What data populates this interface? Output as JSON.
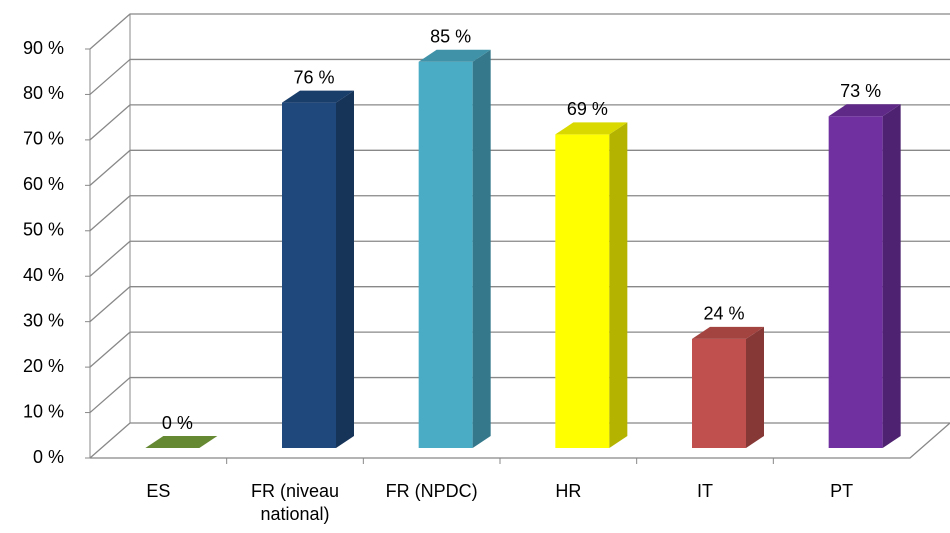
{
  "chart_data": {
    "type": "bar3d",
    "categories": [
      "ES",
      "FR (niveau national)",
      "FR (NPDC)",
      "HR",
      "IT",
      "PT"
    ],
    "values": [
      0,
      76,
      85,
      69,
      24,
      73
    ],
    "value_labels": [
      "0 %",
      "76 %",
      "85 %",
      "69 %",
      "24 %",
      "73 %"
    ],
    "colors": [
      "#77a03b",
      "#1f497d",
      "#4bacc6",
      "#ffff00",
      "#c0504d",
      "#7030a0"
    ],
    "ylim": [
      0,
      90
    ],
    "yticks": [
      {
        "value": 0,
        "label": "0 %"
      },
      {
        "value": 10,
        "label": "10 %"
      },
      {
        "value": 20,
        "label": "20 %"
      },
      {
        "value": 30,
        "label": "30 %"
      },
      {
        "value": 40,
        "label": "40 %"
      },
      {
        "value": 50,
        "label": "50 %"
      },
      {
        "value": 60,
        "label": "60 %"
      },
      {
        "value": 70,
        "label": "70 %"
      },
      {
        "value": 80,
        "label": "80 %"
      },
      {
        "value": 90,
        "label": "90 %"
      }
    ],
    "grid": true
  }
}
